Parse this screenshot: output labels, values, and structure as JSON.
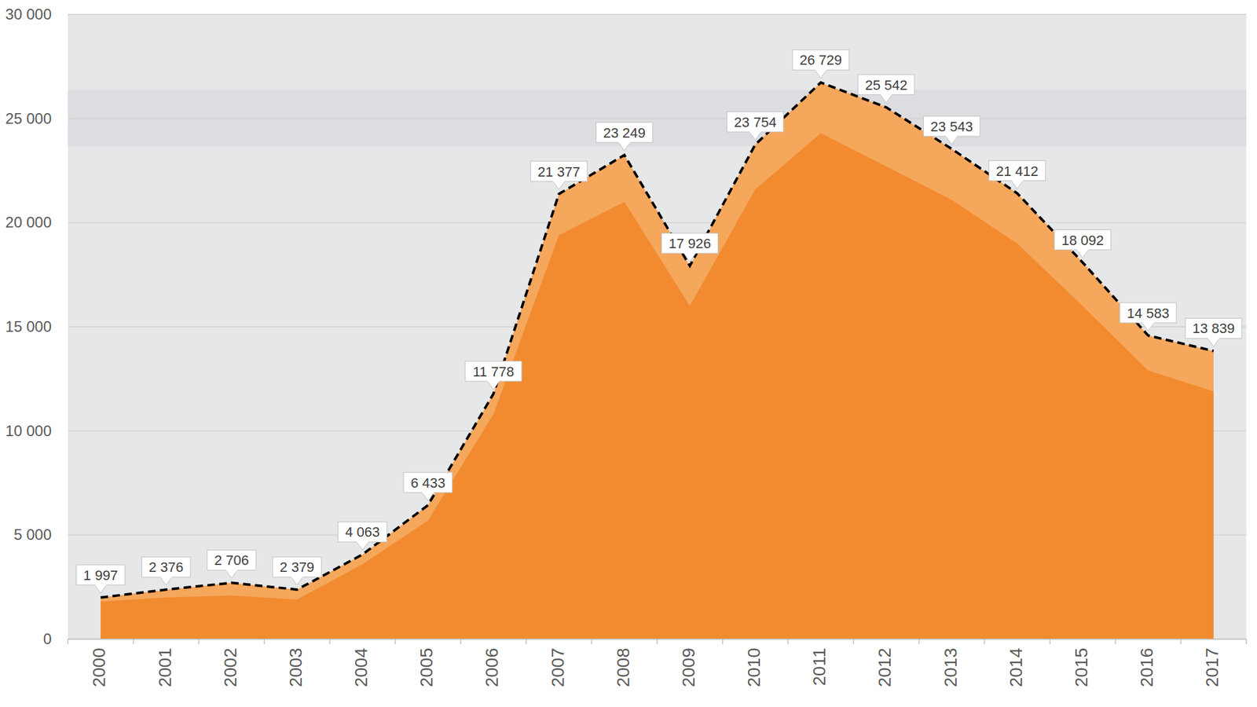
{
  "chart_data": {
    "type": "area",
    "categories": [
      "2000",
      "2001",
      "2002",
      "2003",
      "2004",
      "2005",
      "2006",
      "2007",
      "2008",
      "2009",
      "2010",
      "2011",
      "2012",
      "2013",
      "2014",
      "2015",
      "2016",
      "2017"
    ],
    "series": [
      {
        "color": "#f5a75c",
        "line_style": "dashed",
        "data_labels": true,
        "values": [
          1997,
          2376,
          2706,
          2379,
          4063,
          6433,
          11778,
          21377,
          23249,
          17926,
          23754,
          26729,
          25542,
          23543,
          21412,
          18092,
          14583,
          13839
        ],
        "value_labels": [
          "1 997",
          "2 376",
          "2 706",
          "2 379",
          "4 063",
          "6 433",
          "11 778",
          "21 377",
          "23 249",
          "17 926",
          "23 754",
          "26 729",
          "25 542",
          "23 543",
          "21 412",
          "18 092",
          "14 583",
          "13 839"
        ]
      },
      {
        "color": "#f28b30",
        "values": [
          1800,
          2000,
          2100,
          1900,
          3600,
          5700,
          10800,
          19400,
          21000,
          16000,
          21600,
          24300,
          22700,
          21100,
          19000,
          16000,
          12900,
          11900
        ]
      }
    ],
    "ylim": [
      0,
      30000
    ],
    "yticks": [
      0,
      {
        "value": 5000,
        "label": "5 000"
      },
      {
        "value": 10000,
        "label": "10 000"
      },
      {
        "value": 15000,
        "label": "15 000"
      },
      {
        "value": 20000,
        "label": "20 000"
      },
      {
        "value": 25000,
        "label": "25 000"
      },
      {
        "value": 30000,
        "label": "30 000"
      }
    ],
    "grid": true
  }
}
